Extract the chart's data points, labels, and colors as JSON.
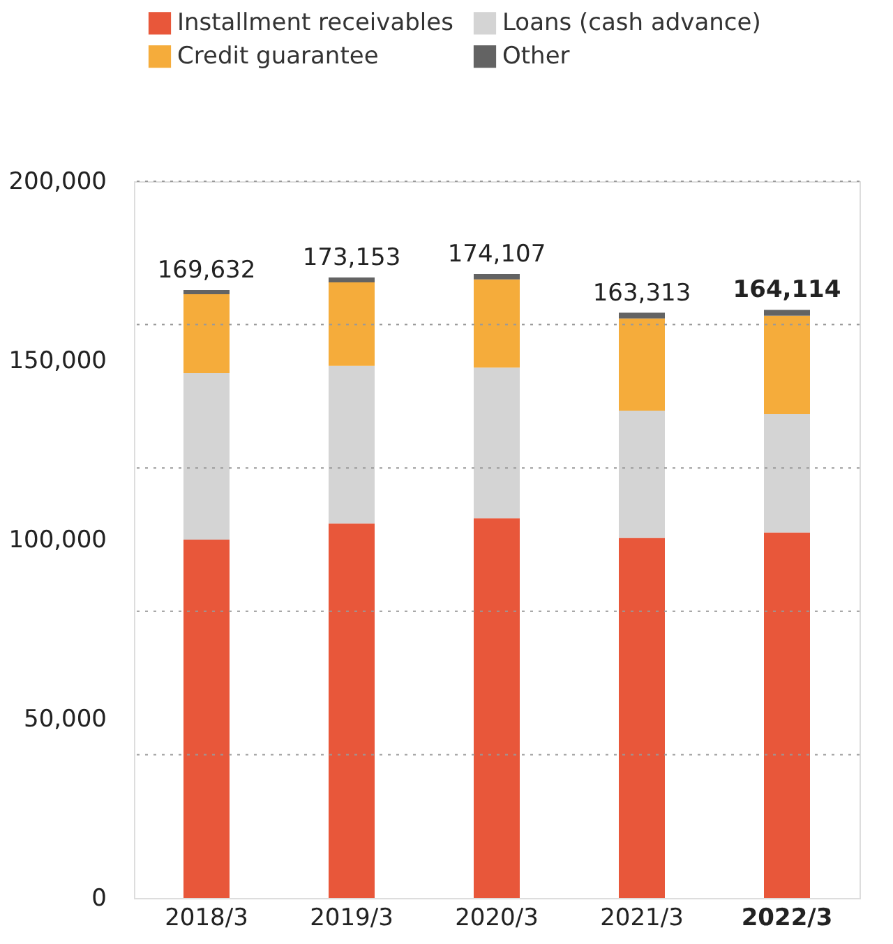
{
  "chart_data": {
    "type": "bar",
    "stacked": true,
    "categories": [
      "2018/3",
      "2019/3",
      "2020/3",
      "2021/3",
      "2022/3"
    ],
    "series": [
      {
        "name": "Installment receivables",
        "color": "#e8573a",
        "values": [
          100000,
          104500,
          106000,
          100500,
          102000
        ]
      },
      {
        "name": "Loans (cash advance)",
        "color": "#d4d4d4",
        "values": [
          46500,
          44000,
          42000,
          35500,
          33000
        ]
      },
      {
        "name": "Credit guarantee",
        "color": "#f5ac3b",
        "values": [
          22000,
          23300,
          24600,
          25700,
          27500
        ]
      },
      {
        "name": "Other",
        "color": "#636363",
        "values": [
          1132,
          1353,
          1507,
          1613,
          1614
        ]
      }
    ],
    "totals": [
      "169,632",
      "173,153",
      "174,107",
      "163,313",
      "164,114"
    ],
    "ylim": [
      0,
      200000
    ],
    "yticks": [
      0,
      {
        "value": 40000,
        "label": null
      },
      {
        "value": 50000,
        "label": "50,000"
      },
      {
        "value": 80000,
        "label": null
      },
      {
        "value": 100000,
        "label": "100,000"
      },
      {
        "value": 120000,
        "label": null
      },
      {
        "value": 150000,
        "label": "150,000"
      },
      {
        "value": 160000,
        "label": null
      },
      {
        "value": 200000,
        "label": "200,000"
      }
    ],
    "grid": true,
    "legend": "top"
  }
}
